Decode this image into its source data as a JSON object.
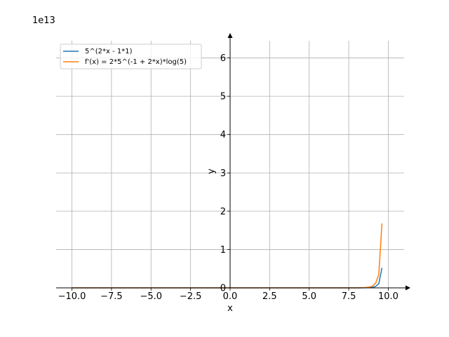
{
  "chart_data": {
    "type": "line",
    "title": "",
    "xlabel": "x",
    "ylabel": "y",
    "offset_text": "1e13",
    "xlim": [
      -11.0,
      11.0
    ],
    "ylim": [
      0,
      6.45
    ],
    "xticks": [
      -10.0,
      -7.5,
      -5.0,
      -2.5,
      0.0,
      2.5,
      5.0,
      7.5,
      10.0
    ],
    "xtick_labels": [
      "−10.0",
      "−7.5",
      "−5.0",
      "−2.5",
      "0.0",
      "2.5",
      "5.0",
      "7.5",
      "10.0"
    ],
    "yticks": [
      0,
      1,
      2,
      3,
      4,
      5,
      6
    ],
    "ytick_labels": [
      "0",
      "1",
      "2",
      "3",
      "4",
      "5",
      "6"
    ],
    "grid": true,
    "legend_position": "upper-left",
    "series": [
      {
        "name": "5^(2*x - 1*1)",
        "color": "#1f77b4",
        "x": [
          -10,
          -5,
          0,
          5,
          7.5,
          8.0,
          8.5,
          8.8,
          9.0,
          9.2,
          9.4,
          9.6
        ],
        "y": [
          0,
          0,
          0,
          0,
          6e-05,
          0.00027,
          0.0024,
          0.0064,
          0.0139,
          0.0379,
          0.1083,
          0.522
        ]
      },
      {
        "name": "f'(x) = 2*5^(-1 + 2*x)*log(5)",
        "color": "#ff7f0e",
        "x": [
          -10,
          -5,
          0,
          5,
          7.5,
          8.0,
          8.5,
          8.8,
          9.0,
          9.2,
          9.4,
          9.6
        ],
        "y": [
          0,
          0,
          0,
          0,
          0.0002,
          0.00087,
          0.0077,
          0.0206,
          0.0447,
          0.122,
          0.3486,
          1.68
        ]
      }
    ]
  }
}
